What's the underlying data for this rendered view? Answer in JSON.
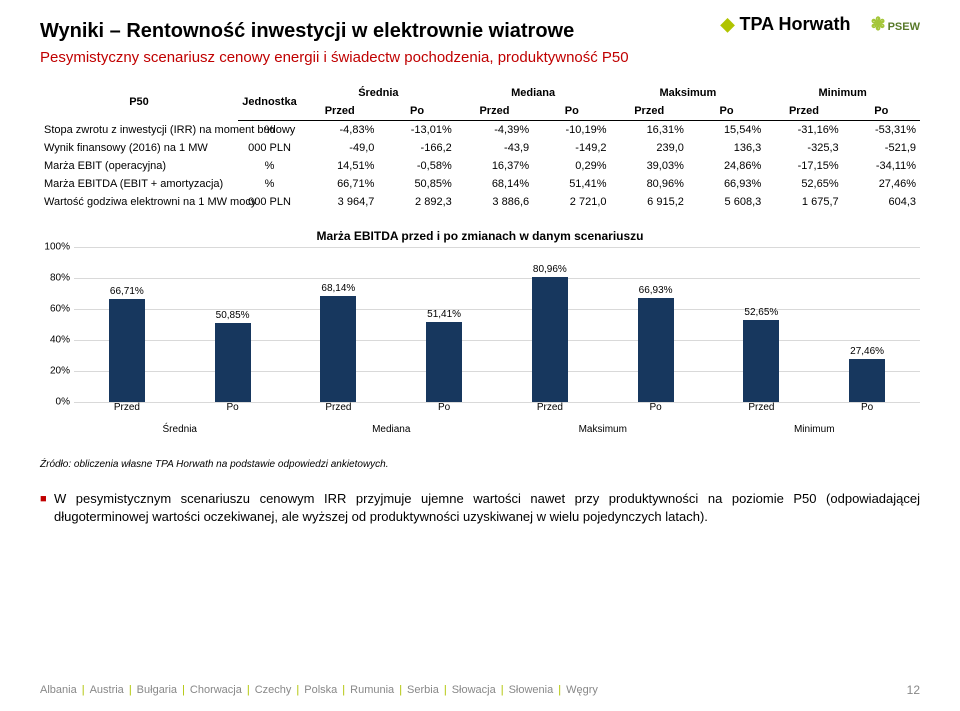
{
  "logos": {
    "tpa_name": "TPA Horwath",
    "psew_name": "PSEW"
  },
  "title": "Wyniki – Rentowność inwestycji w elektrownie wiatrowe",
  "subtitle": "Pesymistyczny scenariusz cenowy energii i świadectw pochodzenia, produktywność P50",
  "table": {
    "corner_label": "P50",
    "unit_header": "Jednostka",
    "group_headers": [
      "Średnia",
      "Mediana",
      "Maksimum",
      "Minimum"
    ],
    "sub_headers": [
      "Przed",
      "Po"
    ],
    "rows": [
      {
        "label": "Stopa zwrotu z inwestycji (IRR) na moment budowy",
        "unit": "%",
        "cells": [
          "-4,83%",
          "-13,01%",
          "-4,39%",
          "-10,19%",
          "16,31%",
          "15,54%",
          "-31,16%",
          "-53,31%"
        ]
      },
      {
        "label": "Wynik finansowy (2016) na 1 MW",
        "unit": "000 PLN",
        "cells": [
          "-49,0",
          "-166,2",
          "-43,9",
          "-149,2",
          "239,0",
          "136,3",
          "-325,3",
          "-521,9"
        ]
      },
      {
        "label": "Marża EBIT (operacyjna)",
        "unit": "%",
        "cells": [
          "14,51%",
          "-0,58%",
          "16,37%",
          "0,29%",
          "39,03%",
          "24,86%",
          "-17,15%",
          "-34,11%"
        ]
      },
      {
        "label": "Marża EBITDA (EBIT + amortyzacja)",
        "unit": "%",
        "cells": [
          "66,71%",
          "50,85%",
          "68,14%",
          "51,41%",
          "80,96%",
          "66,93%",
          "52,65%",
          "27,46%"
        ]
      },
      {
        "label": "Wartość godziwa elektrowni na 1 MW mocy",
        "unit": "000 PLN",
        "cells": [
          "3 964,7",
          "2 892,3",
          "3 886,6",
          "2 721,0",
          "6 915,2",
          "5 608,3",
          "1 675,7",
          "604,3"
        ]
      }
    ]
  },
  "chart": {
    "title": "Marża EBITDA przed i po zmianach w danym scenariuszu",
    "y_ticks": [
      "0%",
      "20%",
      "40%",
      "60%",
      "80%",
      "100%"
    ],
    "y_max": 100,
    "bar_color": "#17375e",
    "grid_color": "#d9d9d9",
    "bars": [
      {
        "label": "66,71%",
        "value": 66.71
      },
      {
        "label": "50,85%",
        "value": 50.85
      },
      {
        "label": "68,14%",
        "value": 68.14
      },
      {
        "label": "51,41%",
        "value": 51.41
      },
      {
        "label": "80,96%",
        "value": 80.96
      },
      {
        "label": "66,93%",
        "value": 66.93
      },
      {
        "label": "52,65%",
        "value": 52.65
      },
      {
        "label": "27,46%",
        "value": 27.46
      }
    ],
    "x_sub_labels": [
      "Przed",
      "Po",
      "Przed",
      "Po",
      "Przed",
      "Po",
      "Przed",
      "Po"
    ],
    "x_group_labels": [
      "Średnia",
      "Mediana",
      "Maksimum",
      "Minimum"
    ]
  },
  "source_note": "Źródło: obliczenia własne TPA Horwath na podstawie odpowiedzi ankietowych.",
  "body_paragraph": "W pesymistycznym scenariuszu cenowym IRR przyjmuje ujemne wartości nawet przy produktywności na poziomie P50 (odpowiadającej długoterminowej wartości oczekiwanej, ale wyższej od produktywności uzyskiwanej w wielu pojedynczych latach).",
  "footer": {
    "countries": [
      "Albania",
      "Austria",
      "Bułgaria",
      "Chorwacja",
      "Czechy",
      "Polska",
      "Rumunia",
      "Serbia",
      "Słowacja",
      "Słowenia",
      "Węgry"
    ],
    "page_number": "12"
  }
}
